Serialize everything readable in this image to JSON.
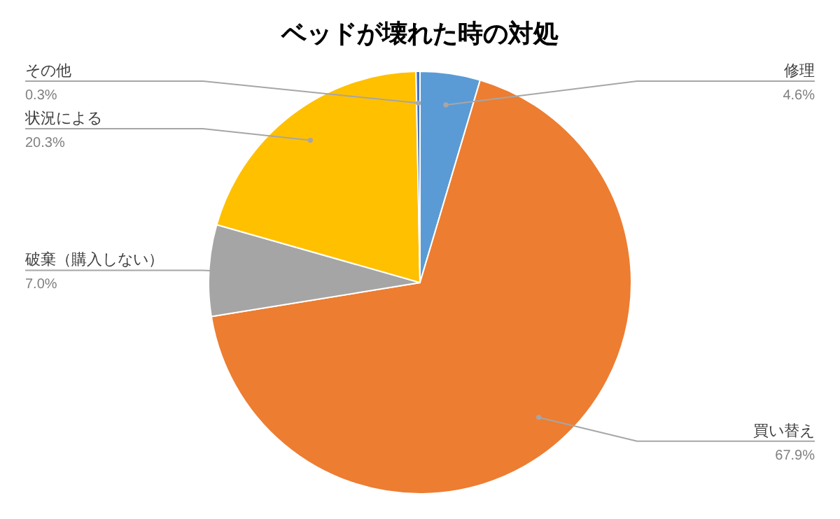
{
  "chart_data": {
    "type": "pie",
    "title": "ベッドが壊れた時の対処",
    "categories": [
      "修理",
      "買い替え",
      "破棄（購入しない）",
      "状況による",
      "その他"
    ],
    "values": [
      4.6,
      67.9,
      7.0,
      20.3,
      0.3
    ],
    "colors": [
      "#5b9bd5",
      "#ed7d31",
      "#a5a5a5",
      "#ffc000",
      "#4472c4"
    ],
    "value_labels": [
      "4.6%",
      "67.9%",
      "7.0%",
      "20.3%",
      "0.3%"
    ]
  }
}
